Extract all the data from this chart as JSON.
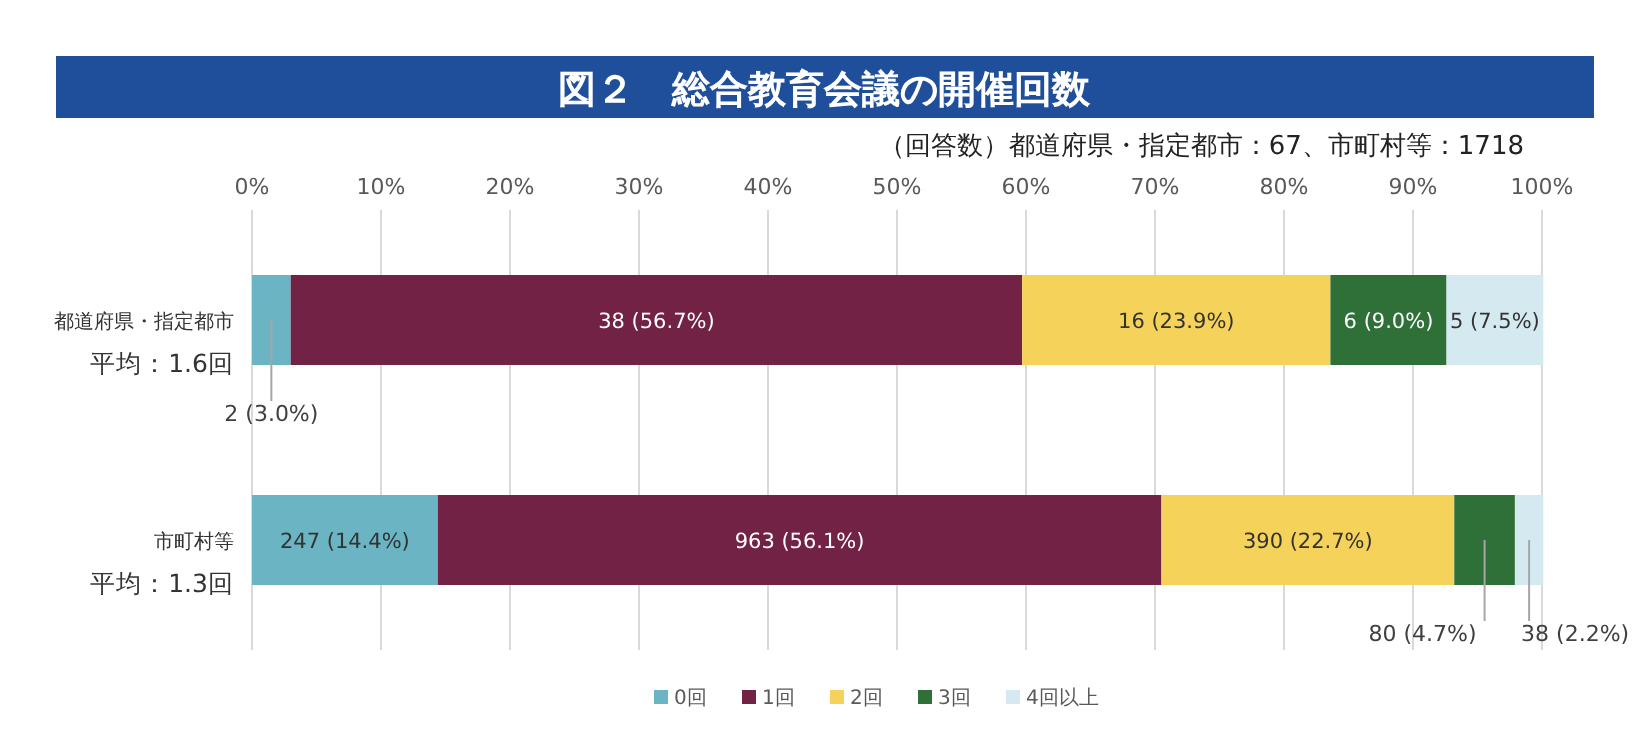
{
  "chart_data": {
    "type": "bar",
    "orientation": "horizontal",
    "stacked": true,
    "title": "図２　総合教育会議の開催回数",
    "subtitle": "（回答数）都道府県・指定都市：67、市町村等：1718",
    "categories": [
      "都道府県・指定都市",
      "市町村等"
    ],
    "series": [
      {
        "name": "0回",
        "color": "#6ab4c4",
        "values": [
          3.0,
          14.4
        ],
        "value_labels": [
          "2 (3.0%)",
          "247 (14.4%)"
        ]
      },
      {
        "name": "1回",
        "color": "#722245",
        "values": [
          56.7,
          56.1
        ],
        "value_labels": [
          "38 (56.7%)",
          "963 (56.1%)"
        ]
      },
      {
        "name": "2回",
        "color": "#f5d25a",
        "values": [
          23.9,
          22.7
        ],
        "value_labels": [
          "16 (23.9%)",
          "390 (22.7%)"
        ]
      },
      {
        "name": "3回",
        "color": "#2e7038",
        "values": [
          9.0,
          4.7
        ],
        "value_labels": [
          "6 (9.0%)",
          "80 (4.7%)"
        ]
      },
      {
        "name": "4回以上",
        "color": "#d4eaf0",
        "values": [
          7.5,
          2.2
        ],
        "value_labels": [
          "5 (7.5%)",
          "38 (2.2%)"
        ]
      }
    ],
    "xlim": [
      0,
      100
    ],
    "xticks": [
      {
        "value": 0,
        "label": "0%"
      },
      {
        "value": 10,
        "label": "10%"
      },
      {
        "value": 20,
        "label": "20%"
      },
      {
        "value": 30,
        "label": "30%"
      },
      {
        "value": 40,
        "label": "40%"
      },
      {
        "value": 50,
        "label": "50%"
      },
      {
        "value": 60,
        "label": "60%"
      },
      {
        "value": 70,
        "label": "70%"
      },
      {
        "value": 80,
        "label": "80%"
      },
      {
        "value": 90,
        "label": "90%"
      },
      {
        "value": 100,
        "label": "100%"
      }
    ],
    "grid": "x",
    "legend": "bottom",
    "annotations": [
      "平均：1.6回",
      "平均：1.3回"
    ]
  }
}
